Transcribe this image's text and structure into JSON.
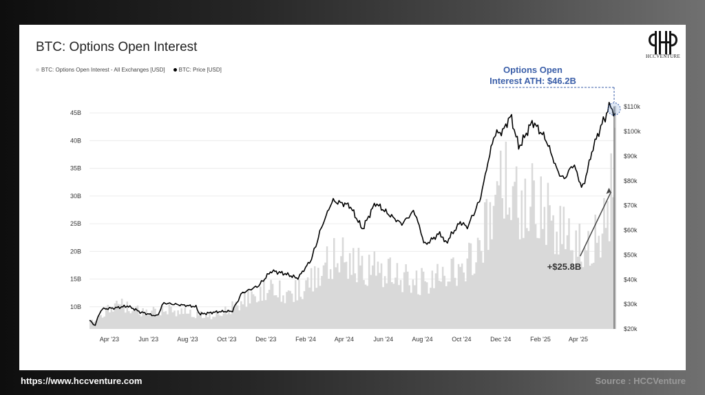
{
  "chart_data": {
    "type": "area",
    "title": "BTC: Options Open Interest",
    "legend_position": "top-left",
    "grid": true,
    "x_ticks": [
      "Apr '23",
      "Jun '23",
      "Aug '23",
      "Oct '23",
      "Dec '23",
      "Feb '24",
      "Apr '24",
      "Jun '24",
      "Aug '24",
      "Oct '24",
      "Dec '24",
      "Feb '25",
      "Apr '25"
    ],
    "y_left_ticks": [
      "10B",
      "15B",
      "20B",
      "25B",
      "30B",
      "35B",
      "40B",
      "45B"
    ],
    "y_right_ticks": [
      "$20k",
      "$30k",
      "$40k",
      "$50k",
      "$60k",
      "$70k",
      "$80k",
      "$90k",
      "$100k",
      "$110k"
    ],
    "y_left_range": [
      6,
      47
    ],
    "y_right_range": [
      20000,
      112000
    ],
    "x_range": [
      "2023-03-01",
      "2025-05-29"
    ],
    "series": [
      {
        "name": "BTC: Options Open Interest - All Exchanges [USD]",
        "axis": "left",
        "color": "#d9d9d9",
        "x": [
          "2023-03-01",
          "2023-03-20",
          "2023-04-10",
          "2023-04-30",
          "2023-05-20",
          "2023-06-10",
          "2023-06-30",
          "2023-07-20",
          "2023-08-10",
          "2023-08-30",
          "2023-09-20",
          "2023-10-10",
          "2023-10-30",
          "2023-11-20",
          "2023-12-10",
          "2023-12-30",
          "2024-01-20",
          "2024-02-10",
          "2024-02-28",
          "2024-03-20",
          "2024-04-10",
          "2024-04-30",
          "2024-05-20",
          "2024-06-10",
          "2024-06-30",
          "2024-07-20",
          "2024-08-10",
          "2024-08-30",
          "2024-09-20",
          "2024-10-10",
          "2024-10-30",
          "2024-11-20",
          "2024-12-10",
          "2024-12-30",
          "2025-01-20",
          "2025-02-10",
          "2025-02-28",
          "2025-03-20",
          "2025-04-10",
          "2025-04-30",
          "2025-05-20",
          "2025-05-29"
        ],
        "values": [
          7.5,
          9,
          12,
          11,
          10,
          10,
          10.5,
          10,
          9.5,
          9,
          9.5,
          11,
          13,
          14,
          16,
          14,
          15,
          17,
          20,
          23,
          22,
          20,
          20,
          19,
          18,
          17,
          17,
          18,
          19,
          21,
          25,
          36,
          40,
          34,
          36,
          33,
          29,
          27,
          24,
          27,
          35,
          46.2
        ]
      },
      {
        "name": "BTC: Price [USD]",
        "axis": "right",
        "color": "#000000",
        "x": [
          "2023-03-01",
          "2023-03-10",
          "2023-03-20",
          "2023-04-10",
          "2023-04-30",
          "2023-05-20",
          "2023-06-15",
          "2023-06-25",
          "2023-07-20",
          "2023-08-15",
          "2023-08-20",
          "2023-09-20",
          "2023-10-10",
          "2023-10-25",
          "2023-11-20",
          "2023-12-10",
          "2023-12-30",
          "2024-01-20",
          "2024-02-10",
          "2024-02-28",
          "2024-03-14",
          "2024-04-10",
          "2024-04-30",
          "2024-05-20",
          "2024-06-10",
          "2024-06-30",
          "2024-07-20",
          "2024-08-05",
          "2024-08-30",
          "2024-09-06",
          "2024-09-30",
          "2024-10-10",
          "2024-10-30",
          "2024-11-12",
          "2024-11-22",
          "2024-12-05",
          "2024-12-17",
          "2024-12-30",
          "2025-01-20",
          "2025-02-10",
          "2025-02-28",
          "2025-03-10",
          "2025-03-25",
          "2025-04-08",
          "2025-04-25",
          "2025-05-10",
          "2025-05-22",
          "2025-05-29"
        ],
        "values": [
          23500,
          21500,
          28000,
          28500,
          29300,
          26800,
          25200,
          30500,
          29800,
          29000,
          26000,
          27000,
          27200,
          34500,
          37500,
          43500,
          42500,
          40500,
          48000,
          62500,
          72000,
          70000,
          60500,
          71000,
          66500,
          62500,
          68000,
          54000,
          59000,
          54500,
          63500,
          61000,
          72000,
          88000,
          99000,
          100000,
          106500,
          93500,
          104000,
          97000,
          84000,
          80500,
          87000,
          76500,
          94000,
          104000,
          111000,
          105500
        ]
      }
    ],
    "annotations": [
      {
        "text_line1": "Options Open",
        "text_line2": "Interest ATH: $46.2B",
        "color": "#3a5ea8"
      },
      {
        "text": "+$25.8B",
        "color": "#333333"
      }
    ]
  },
  "brand": {
    "logo_text": "HCCVENTURE"
  },
  "footer": {
    "url": "https://www.hccventure.com",
    "source": "Source : HCCVenture"
  }
}
